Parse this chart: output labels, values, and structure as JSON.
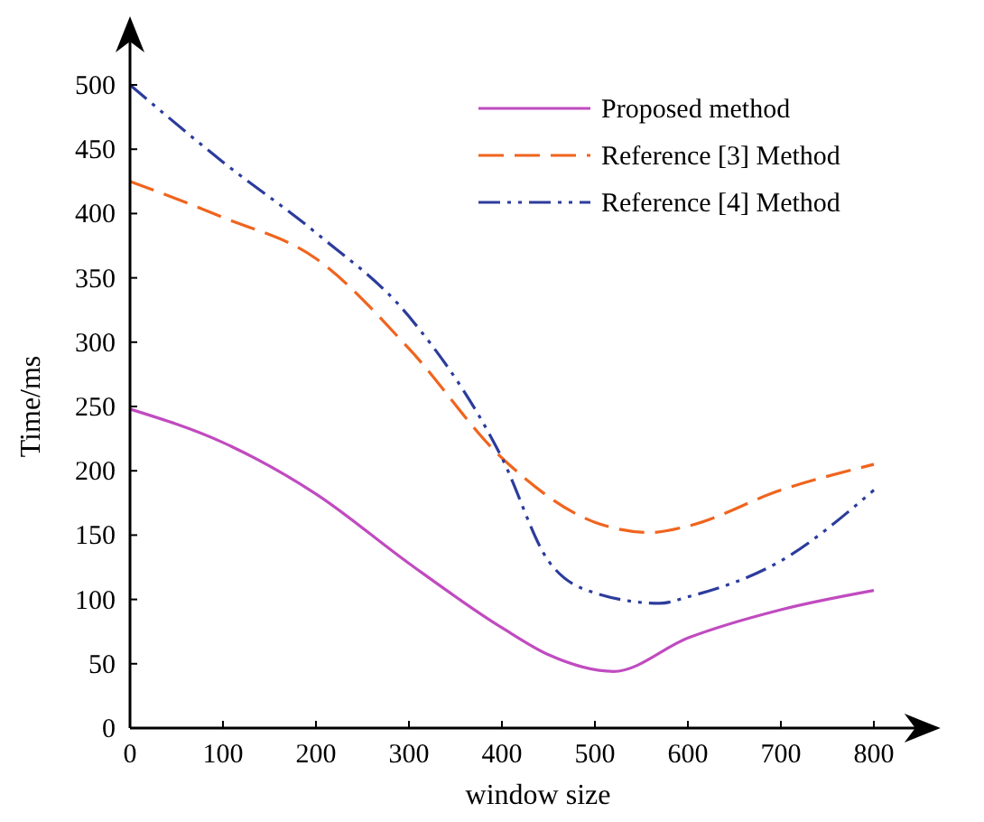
{
  "chart_data": {
    "type": "line",
    "xlabel": "window size",
    "ylabel": "Time/ms",
    "xlim": [
      0,
      860
    ],
    "ylim": [
      0,
      545
    ],
    "xticks": [
      0,
      100,
      200,
      300,
      400,
      500,
      600,
      700,
      800
    ],
    "yticks": [
      0,
      50,
      100,
      150,
      200,
      250,
      300,
      350,
      400,
      450,
      500
    ],
    "series": [
      {
        "name": "Proposed method",
        "color": "#c04bc0",
        "line_style": "solid",
        "x": [
          0,
          100,
          200,
          300,
          400,
          450,
          520,
          600,
          700,
          800
        ],
        "values": [
          248,
          222,
          182,
          128,
          78,
          57,
          44,
          70,
          92,
          107
        ]
      },
      {
        "name": "Reference [3] Method",
        "color": "#f0641e",
        "line_style": "dashed",
        "x": [
          0,
          100,
          200,
          300,
          400,
          500,
          560,
          600,
          700,
          800
        ],
        "values": [
          425,
          397,
          365,
          295,
          210,
          160,
          152,
          157,
          185,
          205
        ]
      },
      {
        "name": "Reference [4] Method",
        "color": "#2c3c9c",
        "line_style": "dotted",
        "x": [
          0,
          100,
          200,
          300,
          400,
          450,
          500,
          570,
          600,
          700,
          800
        ],
        "values": [
          500,
          440,
          385,
          320,
          210,
          130,
          105,
          97,
          102,
          130,
          185
        ]
      }
    ],
    "legend": "top right",
    "grid": false,
    "marker": "none"
  }
}
